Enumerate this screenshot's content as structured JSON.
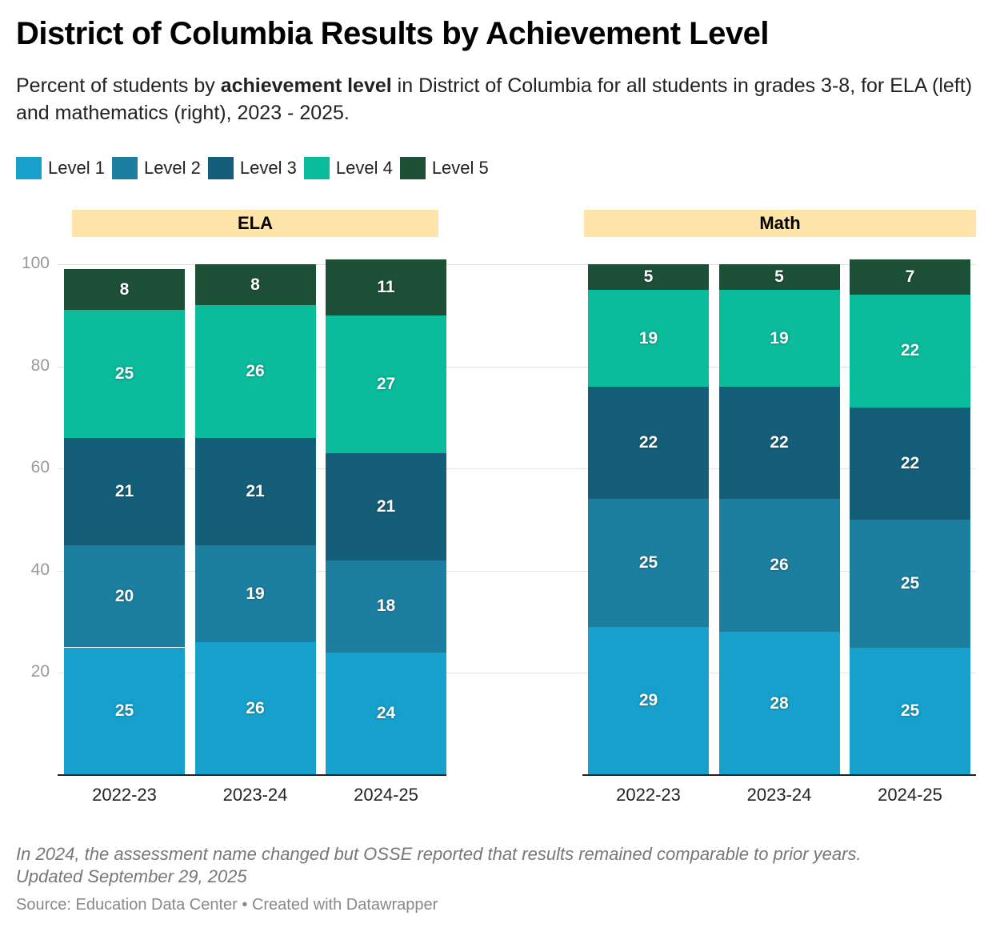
{
  "title": "District of Columbia Results by Achievement Level",
  "subtitle_pre": "Percent of students by ",
  "subtitle_bold": "achievement level",
  "subtitle_post": " in District of Columbia for all students in grades 3-8, for ELA (left) and mathematics (right), 2023 - 2025.",
  "note": "In 2024, the assessment name changed but OSSE reported that results remained comparable to prior years.",
  "updated": "Updated September 29, 2025",
  "source": "Source: Education Data Center • Created with Datawrapper",
  "chart_data": {
    "type": "bar",
    "stacked": true,
    "ylim": [
      0,
      100
    ],
    "yticks": [
      20,
      40,
      60,
      80,
      100
    ],
    "grid": true,
    "legend_position": "top-left",
    "legend": [
      {
        "name": "Level 1",
        "color": "#17a0cc"
      },
      {
        "name": "Level 2",
        "color": "#1d7fa0"
      },
      {
        "name": "Level 3",
        "color": "#155e7a"
      },
      {
        "name": "Level 4",
        "color": "#0abb9c"
      },
      {
        "name": "Level 5",
        "color": "#1e5037"
      }
    ],
    "panels": [
      {
        "name": "ELA",
        "categories": [
          "2022-23",
          "2023-24",
          "2024-25"
        ],
        "series": [
          {
            "name": "Level 1",
            "values": [
              25,
              26,
              24
            ]
          },
          {
            "name": "Level 2",
            "values": [
              20,
              19,
              18
            ]
          },
          {
            "name": "Level 3",
            "values": [
              21,
              21,
              21
            ]
          },
          {
            "name": "Level 4",
            "values": [
              25,
              26,
              27
            ]
          },
          {
            "name": "Level 5",
            "values": [
              8,
              8,
              11
            ]
          }
        ]
      },
      {
        "name": "Math",
        "categories": [
          "2022-23",
          "2023-24",
          "2024-25"
        ],
        "series": [
          {
            "name": "Level 1",
            "values": [
              29,
              28,
              25
            ]
          },
          {
            "name": "Level 2",
            "values": [
              25,
              26,
              25
            ]
          },
          {
            "name": "Level 3",
            "values": [
              22,
              22,
              22
            ]
          },
          {
            "name": "Level 4",
            "values": [
              19,
              19,
              22
            ]
          },
          {
            "name": "Level 5",
            "values": [
              5,
              5,
              7
            ]
          }
        ]
      }
    ]
  }
}
